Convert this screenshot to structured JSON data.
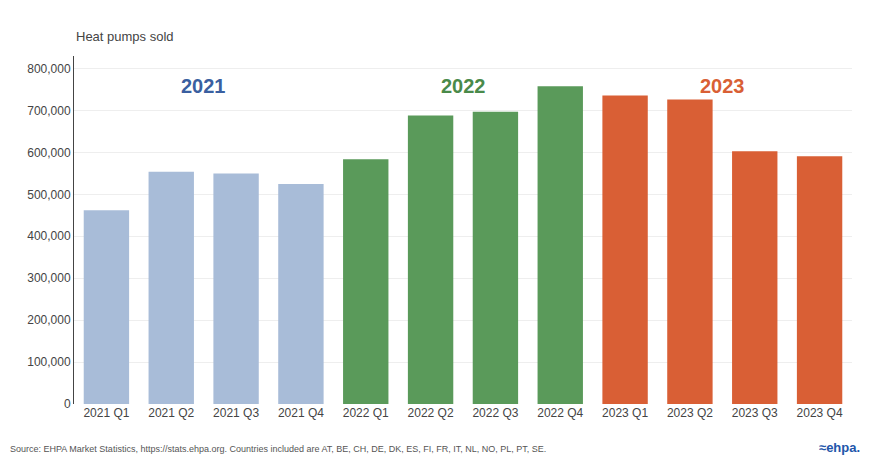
{
  "chart_data": {
    "type": "bar",
    "ylabel": "Heat pumps sold",
    "categories": [
      "2021 Q1",
      "2021 Q2",
      "2021 Q3",
      "2021 Q4",
      "2022 Q1",
      "2022 Q2",
      "2022 Q3",
      "2022 Q4",
      "2023 Q1",
      "2023 Q2",
      "2023 Q3",
      "2023 Q4"
    ],
    "values": [
      462000,
      554000,
      550000,
      525000,
      584000,
      688000,
      697000,
      758000,
      736000,
      726000,
      603000,
      591000
    ],
    "colors": [
      "#a8bcd8",
      "#a8bcd8",
      "#a8bcd8",
      "#a8bcd8",
      "#5a9a5a",
      "#5a9a5a",
      "#5a9a5a",
      "#5a9a5a",
      "#d95f35",
      "#d95f35",
      "#d95f35",
      "#d95f35"
    ],
    "ylim": [
      0,
      830000
    ],
    "yticks": [
      0,
      {
        "value": 100000,
        "label": "100,000"
      },
      {
        "value": 200000,
        "label": "200,000"
      },
      {
        "value": 300000,
        "label": "300,000"
      },
      {
        "value": 400000,
        "label": "400,000"
      },
      {
        "value": 500000,
        "label": "500,000"
      },
      {
        "value": 600000,
        "label": "600,000"
      },
      {
        "value": 700000,
        "label": "700,000"
      },
      {
        "value": 800000,
        "label": "800,000"
      }
    ],
    "grid": true,
    "annotations": [
      {
        "text": "2021",
        "x": 1.5,
        "y": 790000,
        "color": "#3a5fa0"
      },
      {
        "text": "2022",
        "x": 5.5,
        "y": 790000,
        "color": "#4a8a4a"
      },
      {
        "text": "2023",
        "x": 9.5,
        "y": 790000,
        "color": "#d95f35"
      }
    ],
    "source": "Source: EHPA Market Statistics, https://stats.ehpa.org. Countries included are AT, BE, CH, DE, DK, ES, FI, FR, IT, NL, NO, PL, PT, SE.",
    "logo": {
      "text": "≈ehpa.",
      "color": "#2255aa"
    }
  }
}
